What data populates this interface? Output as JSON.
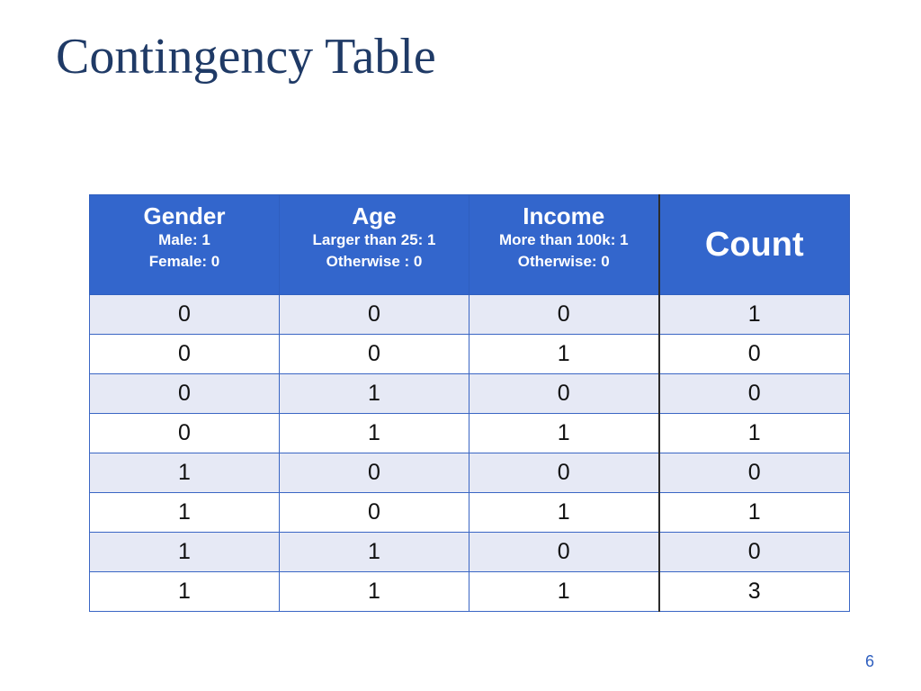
{
  "slide": {
    "title": "Contingency Table",
    "page_number": "6"
  },
  "table": {
    "columns": [
      {
        "name": "Gender",
        "sub1": "Male: 1",
        "sub2": "Female: 0"
      },
      {
        "name": "Age",
        "sub1": "Larger than 25: 1",
        "sub2": "Otherwise : 0"
      },
      {
        "name": "Income",
        "sub1": "More than 100k: 1",
        "sub2": "Otherwise: 0"
      },
      {
        "name": "Count"
      }
    ],
    "rows": [
      [
        "0",
        "0",
        "0",
        "1"
      ],
      [
        "0",
        "0",
        "1",
        "0"
      ],
      [
        "0",
        "1",
        "0",
        "0"
      ],
      [
        "0",
        "1",
        "1",
        "1"
      ],
      [
        "1",
        "0",
        "0",
        "0"
      ],
      [
        "1",
        "0",
        "1",
        "1"
      ],
      [
        "1",
        "1",
        "0",
        "0"
      ],
      [
        "1",
        "1",
        "1",
        "3"
      ]
    ]
  },
  "colors": {
    "title": "#1f3a66",
    "header_bg": "#3366cc",
    "row_alt": "#e6e9f5",
    "page_number": "#2f5fbf"
  }
}
